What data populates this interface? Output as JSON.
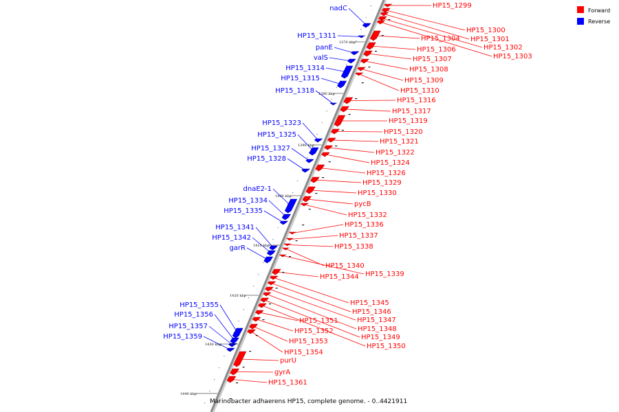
{
  "title": "Marinobacter adhaerens HP15, complete genome. - 0..4421911",
  "legend": [
    {
      "label": "Forward",
      "color": "#ff0000"
    },
    {
      "label": "Reverse",
      "color": "#0000ff"
    }
  ],
  "colors": {
    "forward": "#ff0000",
    "reverse": "#0000ff",
    "backbone": "#8a8a8a"
  },
  "ticks": [
    "1370 kbp",
    "1380 kbp",
    "1390 kbp",
    "1400 kbp",
    "1410 kbp",
    "1420 kbp",
    "1430 kbp",
    "1440 kbp"
  ],
  "forward_genes": [
    "HP15_1299",
    "HP15_1300",
    "HP15_1301",
    "HP15_1302",
    "HP15_1303",
    "HP15_1304",
    "HP15_1306",
    "HP15_1307",
    "HP15_1308",
    "HP15_1309",
    "HP15_1310",
    "HP15_1316",
    "HP15_1317",
    "HP15_1319",
    "HP15_1320",
    "HP15_1321",
    "HP15_1322",
    "HP15_1324",
    "HP15_1326",
    "HP15_1329",
    "HP15_1330",
    "pycB",
    "HP15_1332",
    "HP15_1336",
    "HP15_1337",
    "HP15_1338",
    "HP15_1340",
    "HP15_1339",
    "HP15_1344",
    "HP15_1345",
    "HP15_1346",
    "HP15_1347",
    "HP15_1348",
    "HP15_1349",
    "HP15_1350",
    "HP15_1351",
    "HP15_1352",
    "HP15_1353",
    "HP15_1354",
    "purU",
    "gyrA",
    "HP15_1361"
  ],
  "reverse_genes": [
    "nadC",
    "HP15_1311",
    "panE",
    "valS",
    "HP15_1314",
    "HP15_1315",
    "HP15_1318",
    "HP15_1323",
    "HP15_1325",
    "HP15_1327",
    "HP15_1328",
    "dnaE2-1",
    "HP15_1334",
    "HP15_1335",
    "HP15_1341",
    "HP15_1342",
    "garR",
    "HP15_1355",
    "HP15_1356",
    "HP15_1357",
    "HP15_1359"
  ]
}
